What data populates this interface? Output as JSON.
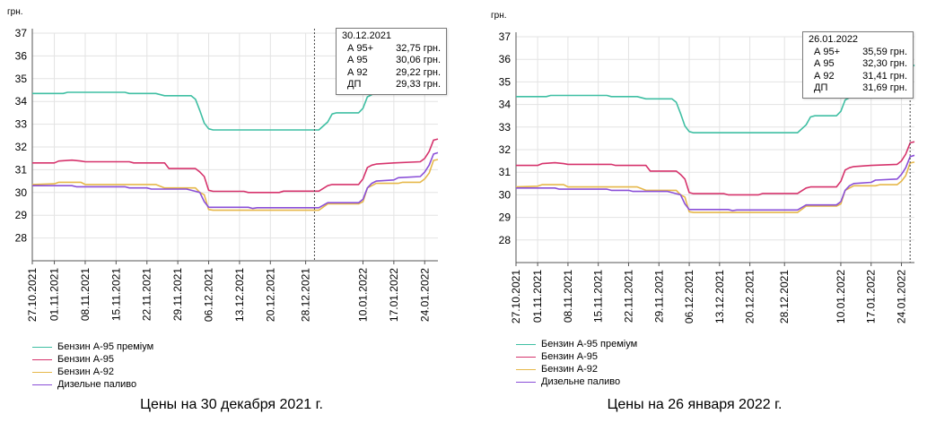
{
  "chart_data": [
    {
      "type": "line",
      "caption": "Цены на 30 декабря 2021 г.",
      "ylabel": "грн.",
      "ylim": [
        27,
        37
      ],
      "yticks": [
        28,
        29,
        30,
        31,
        32,
        33,
        34,
        35,
        36,
        37
      ],
      "x_ticks": [
        "27.10.2021",
        "01.11.2021",
        "08.11.2021",
        "15.11.2021",
        "22.11.2021",
        "29.11.2021",
        "06.12.2021",
        "13.12.2021",
        "20.12.2021",
        "28.12.2021",
        "10.01.2022",
        "17.01.2022",
        "24.01.2022"
      ],
      "x_range": [
        "2021-10-27",
        "2022-01-27"
      ],
      "cursor_date": "2021-12-30",
      "tooltip": {
        "date": "30.12.2021",
        "rows": [
          {
            "name": "А 95+",
            "value": "32,75 грн."
          },
          {
            "name": "А 95",
            "value": "30,06 грн."
          },
          {
            "name": "А 92",
            "value": "29,22 грн."
          },
          {
            "name": "ДП",
            "value": "29,33 грн."
          }
        ]
      },
      "series": [
        {
          "name": "Бензин А-95 преміум",
          "color": "#3fbfa3",
          "points": [
            [
              "2021-10-27",
              34.35
            ],
            [
              "2021-11-03",
              34.35
            ],
            [
              "2021-11-04",
              34.4
            ],
            [
              "2021-11-17",
              34.4
            ],
            [
              "2021-11-18",
              34.35
            ],
            [
              "2021-11-24",
              34.35
            ],
            [
              "2021-11-26",
              34.25
            ],
            [
              "2021-12-02",
              34.25
            ],
            [
              "2021-12-03",
              34.1
            ],
            [
              "2021-12-04",
              33.6
            ],
            [
              "2021-12-05",
              33.05
            ],
            [
              "2021-12-06",
              32.8
            ],
            [
              "2021-12-07",
              32.75
            ],
            [
              "2021-12-31",
              32.75
            ],
            [
              "2022-01-02",
              33.1
            ],
            [
              "2022-01-03",
              33.45
            ],
            [
              "2022-01-04",
              33.5
            ],
            [
              "2022-01-09",
              33.5
            ],
            [
              "2022-01-10",
              33.7
            ],
            [
              "2022-01-11",
              34.2
            ],
            [
              "2022-01-12",
              34.3
            ],
            [
              "2022-01-13",
              34.9
            ],
            [
              "2022-01-14",
              35.05
            ],
            [
              "2022-01-17",
              35.05
            ],
            [
              "2022-01-19",
              35.1
            ],
            [
              "2022-01-24",
              35.15
            ],
            [
              "2022-01-25",
              35.35
            ],
            [
              "2022-01-26",
              35.59
            ],
            [
              "2022-01-27",
              35.75
            ]
          ]
        },
        {
          "name": "Бензин А-95",
          "color": "#d6336c",
          "points": [
            [
              "2021-10-27",
              31.3
            ],
            [
              "2021-11-01",
              31.3
            ],
            [
              "2021-11-02",
              31.38
            ],
            [
              "2021-11-05",
              31.42
            ],
            [
              "2021-11-07",
              31.38
            ],
            [
              "2021-11-08",
              31.35
            ],
            [
              "2021-11-18",
              31.35
            ],
            [
              "2021-11-19",
              31.3
            ],
            [
              "2021-11-26",
              31.3
            ],
            [
              "2021-11-27",
              31.05
            ],
            [
              "2021-12-03",
              31.05
            ],
            [
              "2021-12-04",
              30.9
            ],
            [
              "2021-12-05",
              30.7
            ],
            [
              "2021-12-06",
              30.1
            ],
            [
              "2021-12-07",
              30.05
            ],
            [
              "2021-12-14",
              30.05
            ],
            [
              "2021-12-15",
              30.0
            ],
            [
              "2021-12-22",
              30.0
            ],
            [
              "2021-12-23",
              30.06
            ],
            [
              "2021-12-31",
              30.06
            ],
            [
              "2022-01-02",
              30.3
            ],
            [
              "2022-01-03",
              30.35
            ],
            [
              "2022-01-09",
              30.35
            ],
            [
              "2022-01-10",
              30.6
            ],
            [
              "2022-01-11",
              31.1
            ],
            [
              "2022-01-12",
              31.2
            ],
            [
              "2022-01-13",
              31.25
            ],
            [
              "2022-01-17",
              31.3
            ],
            [
              "2022-01-23",
              31.35
            ],
            [
              "2022-01-24",
              31.5
            ],
            [
              "2022-01-25",
              31.8
            ],
            [
              "2022-01-26",
              32.3
            ],
            [
              "2022-01-27",
              32.35
            ]
          ]
        },
        {
          "name": "Бензин А-92",
          "color": "#e6b84a",
          "points": [
            [
              "2021-10-27",
              30.35
            ],
            [
              "2021-11-01",
              30.38
            ],
            [
              "2021-11-02",
              30.45
            ],
            [
              "2021-11-07",
              30.45
            ],
            [
              "2021-11-08",
              30.35
            ],
            [
              "2021-11-24",
              30.35
            ],
            [
              "2021-11-26",
              30.2
            ],
            [
              "2021-12-03",
              30.2
            ],
            [
              "2021-12-04",
              30.0
            ],
            [
              "2021-12-05",
              29.9
            ],
            [
              "2021-12-06",
              29.25
            ],
            [
              "2021-12-07",
              29.22
            ],
            [
              "2021-12-31",
              29.22
            ],
            [
              "2022-01-02",
              29.5
            ],
            [
              "2022-01-09",
              29.5
            ],
            [
              "2022-01-10",
              29.6
            ],
            [
              "2022-01-11",
              30.2
            ],
            [
              "2022-01-12",
              30.3
            ],
            [
              "2022-01-13",
              30.4
            ],
            [
              "2022-01-18",
              30.4
            ],
            [
              "2022-01-19",
              30.45
            ],
            [
              "2022-01-23",
              30.45
            ],
            [
              "2022-01-24",
              30.6
            ],
            [
              "2022-01-25",
              30.85
            ],
            [
              "2022-01-26",
              31.41
            ],
            [
              "2022-01-27",
              31.45
            ]
          ]
        },
        {
          "name": "Дизельне паливо",
          "color": "#8a4fd8",
          "points": [
            [
              "2021-10-27",
              30.3
            ],
            [
              "2021-11-05",
              30.3
            ],
            [
              "2021-11-06",
              30.25
            ],
            [
              "2021-11-17",
              30.25
            ],
            [
              "2021-11-18",
              30.2
            ],
            [
              "2021-11-22",
              30.2
            ],
            [
              "2021-11-23",
              30.15
            ],
            [
              "2021-12-01",
              30.15
            ],
            [
              "2021-12-03",
              30.05
            ],
            [
              "2021-12-04",
              30.0
            ],
            [
              "2021-12-05",
              29.6
            ],
            [
              "2021-12-06",
              29.35
            ],
            [
              "2021-12-15",
              29.35
            ],
            [
              "2021-12-16",
              29.3
            ],
            [
              "2021-12-17",
              29.33
            ],
            [
              "2021-12-31",
              29.33
            ],
            [
              "2022-01-02",
              29.55
            ],
            [
              "2022-01-09",
              29.55
            ],
            [
              "2022-01-10",
              29.7
            ],
            [
              "2022-01-11",
              30.2
            ],
            [
              "2022-01-12",
              30.4
            ],
            [
              "2022-01-13",
              30.5
            ],
            [
              "2022-01-17",
              30.55
            ],
            [
              "2022-01-18",
              30.65
            ],
            [
              "2022-01-23",
              30.7
            ],
            [
              "2022-01-24",
              30.9
            ],
            [
              "2022-01-25",
              31.2
            ],
            [
              "2022-01-26",
              31.69
            ],
            [
              "2022-01-27",
              31.75
            ]
          ]
        }
      ]
    },
    {
      "type": "line",
      "caption": "Цены на 26 января 2022 г.",
      "ylabel": "грн.",
      "ylim": [
        27,
        37
      ],
      "yticks": [
        28,
        29,
        30,
        31,
        32,
        33,
        34,
        35,
        36,
        37
      ],
      "x_ticks": [
        "27.10.2021",
        "01.11.2021",
        "08.11.2021",
        "15.11.2021",
        "22.11.2021",
        "29.11.2021",
        "06.12.2021",
        "13.12.2021",
        "20.12.2021",
        "28.12.2021",
        "10.01.2022",
        "17.01.2022",
        "24.01.2022"
      ],
      "x_range": [
        "2021-10-27",
        "2022-01-27"
      ],
      "cursor_date": "2022-01-26",
      "tooltip": {
        "date": "26.01.2022",
        "rows": [
          {
            "name": "А 95+",
            "value": "35,59 грн."
          },
          {
            "name": "А 95",
            "value": "32,30 грн."
          },
          {
            "name": "А 92",
            "value": "31,41 грн."
          },
          {
            "name": "ДП",
            "value": "31,69 грн."
          }
        ]
      },
      "series": "same_as_first"
    }
  ],
  "legend": [
    {
      "name": "Бензин А-95 преміум",
      "color": "#3fbfa3"
    },
    {
      "name": "Бензин А-95",
      "color": "#d6336c"
    },
    {
      "name": "Бензин А-92",
      "color": "#e6b84a"
    },
    {
      "name": "Дизельне паливо",
      "color": "#8a4fd8"
    }
  ]
}
